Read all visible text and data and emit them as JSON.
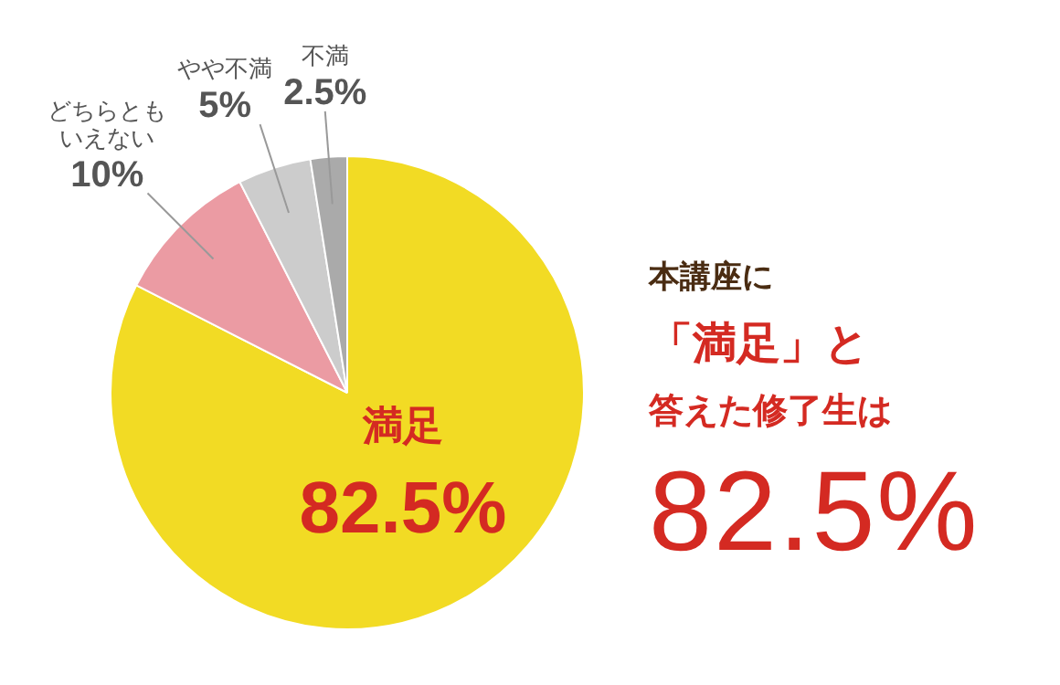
{
  "chart_data": {
    "type": "pie",
    "categories": [
      "満足",
      "どちらともいえない",
      "やや不満",
      "不満"
    ],
    "values": [
      82.5,
      10,
      5,
      2.5
    ],
    "colors": [
      "#f2db24",
      "#eb9ba3",
      "#cccccc",
      "#aaaaaa"
    ],
    "value_labels": [
      "82.5%",
      "10%",
      "5%",
      "2.5%"
    ],
    "annotations": [
      "本講座に",
      "「満足」と",
      "答えた修了生は",
      "82.5%"
    ]
  }
}
